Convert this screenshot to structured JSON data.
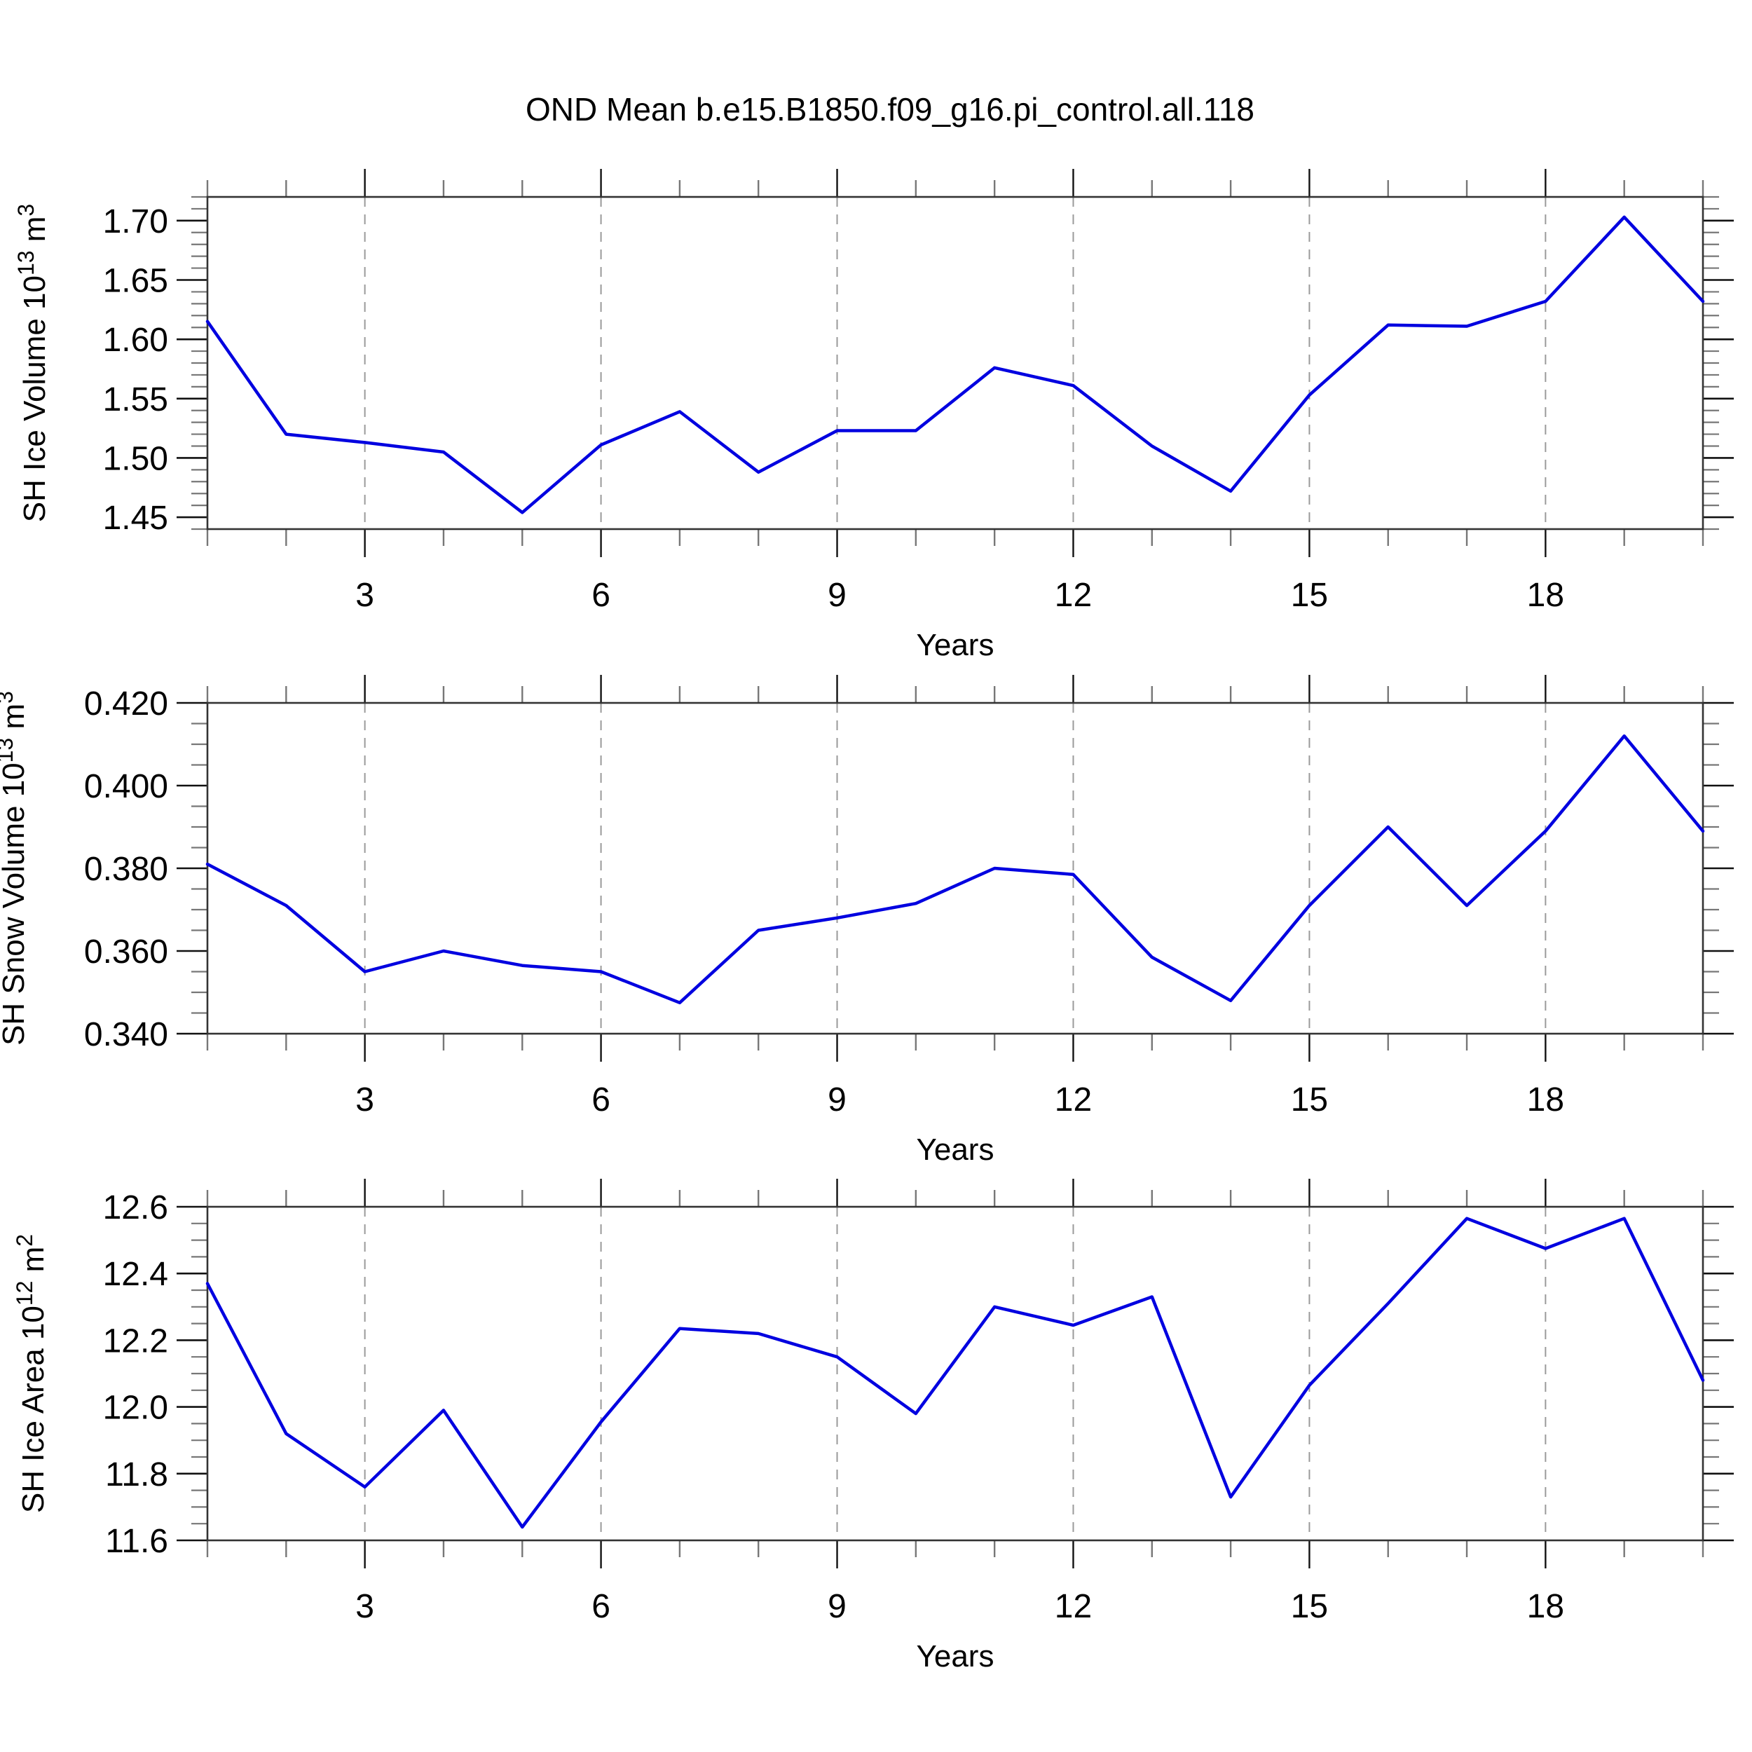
{
  "title": "OND Mean b.e15.B1850.f09_g16.pi_control.all.118",
  "figure": {
    "background_color": "#ffffff",
    "line_color": "#0000e0",
    "grid_color": "#9a9a9a",
    "frame_color": "#333333",
    "minor_tick_color": "#777777",
    "major_tick_color": "#111111",
    "xlabel": "Years",
    "xtick_values": [
      3,
      6,
      9,
      12,
      15,
      18
    ],
    "xtick_labels": [
      "3",
      "6",
      "9",
      "12",
      "15",
      "18"
    ]
  },
  "chart_data": [
    {
      "type": "line",
      "name": "sh-ice-volume",
      "ylabel_text": "SH Ice Volume 10^13 m^3",
      "ylabel_parts": [
        {
          "t": "SH Ice Volume 10"
        },
        {
          "t": "13",
          "sup": true
        },
        {
          "t": " m"
        },
        {
          "t": "3",
          "sup": true
        }
      ],
      "xlabel": "Years",
      "x": [
        1,
        2,
        3,
        4,
        5,
        6,
        7,
        8,
        9,
        10,
        11,
        12,
        13,
        14,
        15,
        16,
        17,
        18,
        19,
        20
      ],
      "values": [
        1.615,
        1.52,
        1.513,
        1.505,
        1.454,
        1.511,
        1.539,
        1.488,
        1.523,
        1.523,
        1.576,
        1.561,
        1.51,
        1.472,
        1.553,
        1.612,
        1.611,
        1.632,
        1.703,
        1.632
      ],
      "xlim": [
        1,
        20
      ],
      "ylim": [
        1.44,
        1.72
      ],
      "ytick_values": [
        1.45,
        1.5,
        1.55,
        1.6,
        1.65,
        1.7
      ],
      "ytick_labels": [
        "1.45",
        "1.50",
        "1.55",
        "1.60",
        "1.65",
        "1.70"
      ],
      "y_minor_step": 0.01,
      "grid": "vertical-dashed-at-x-majors",
      "legend": "none"
    },
    {
      "type": "line",
      "name": "sh-snow-volume",
      "ylabel_text": "SH Snow Volume 10^13 m^3",
      "ylabel_parts": [
        {
          "t": "SH Snow Volume 10"
        },
        {
          "t": "13",
          "sup": true
        },
        {
          "t": " m"
        },
        {
          "t": "3",
          "sup": true
        }
      ],
      "xlabel": "Years",
      "x": [
        1,
        2,
        3,
        4,
        5,
        6,
        7,
        8,
        9,
        10,
        11,
        12,
        13,
        14,
        15,
        16,
        17,
        18,
        19,
        20
      ],
      "values": [
        0.381,
        0.371,
        0.355,
        0.36,
        0.3565,
        0.355,
        0.3475,
        0.365,
        0.368,
        0.3715,
        0.38,
        0.3785,
        0.3585,
        0.348,
        0.371,
        0.39,
        0.371,
        0.389,
        0.412,
        0.389
      ],
      "xlim": [
        1,
        20
      ],
      "ylim": [
        0.34,
        0.42
      ],
      "ytick_values": [
        0.34,
        0.36,
        0.38,
        0.4,
        0.42
      ],
      "ytick_labels": [
        "0.340",
        "0.360",
        "0.380",
        "0.400",
        "0.420"
      ],
      "y_minor_step": 0.005,
      "grid": "vertical-dashed-at-x-majors",
      "legend": "none"
    },
    {
      "type": "line",
      "name": "sh-ice-area",
      "ylabel_text": "SH Ice Area 10^12 m^2",
      "ylabel_parts": [
        {
          "t": "SH Ice Area 10"
        },
        {
          "t": "12",
          "sup": true
        },
        {
          "t": " m"
        },
        {
          "t": "2",
          "sup": true
        }
      ],
      "xlabel": "Years",
      "x": [
        1,
        2,
        3,
        4,
        5,
        6,
        7,
        8,
        9,
        10,
        11,
        12,
        13,
        14,
        15,
        16,
        17,
        18,
        19,
        20
      ],
      "values": [
        12.37,
        11.92,
        11.76,
        11.99,
        11.64,
        11.955,
        12.235,
        12.22,
        12.15,
        11.98,
        12.3,
        12.245,
        12.33,
        11.73,
        12.065,
        12.31,
        12.565,
        12.475,
        12.565,
        12.08
      ],
      "xlim": [
        1,
        20
      ],
      "ylim": [
        11.6,
        12.6
      ],
      "ytick_values": [
        11.6,
        11.8,
        12.0,
        12.2,
        12.4,
        12.6
      ],
      "ytick_labels": [
        "11.6",
        "11.8",
        "12.0",
        "12.2",
        "12.4",
        "12.6"
      ],
      "y_minor_step": 0.05,
      "grid": "vertical-dashed-at-x-majors",
      "legend": "none"
    }
  ]
}
